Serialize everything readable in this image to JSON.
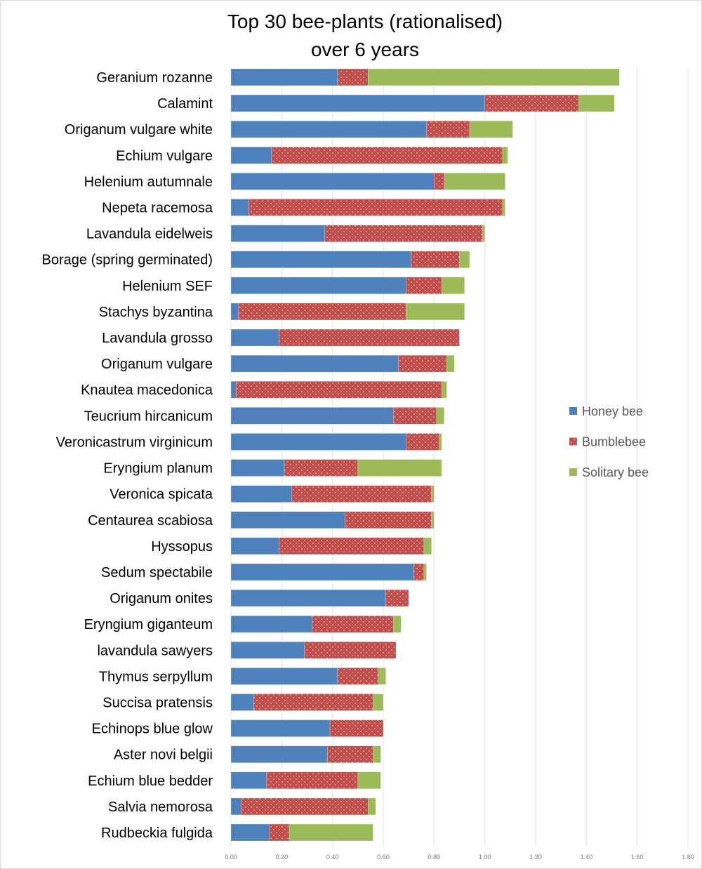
{
  "chart_data": {
    "type": "bar",
    "orientation": "horizontal",
    "stacked": true,
    "title": [
      "Top 30 bee-plants (rationalised)",
      "over 6 years"
    ],
    "xlabel": "",
    "ylabel": "",
    "xlim": [
      0,
      1.8
    ],
    "xticks": [
      "0.00",
      "0.20",
      "0.40",
      "0.60",
      "0.80",
      "1.00",
      "1.20",
      "1.40",
      "1.60",
      "1.80"
    ],
    "grid": true,
    "legend_position": "right",
    "categories": [
      "Geranium rozanne",
      "Calamint",
      "Origanum vulgare white",
      "Echium vulgare",
      "Helenium autumnale",
      "Nepeta racemosa",
      "Lavandula eidelweis",
      "Borage (spring germinated)",
      "Helenium SEF",
      "Stachys byzantina",
      "Lavandula grosso",
      "Origanum vulgare",
      "Knautea macedonica",
      "Teucrium hircanicum",
      "Veronicastrum virginicum",
      "Eryngium planum",
      "Veronica spicata",
      "Centaurea scabiosa",
      "Hyssopus",
      "Sedum spectabile",
      "Origanum onites",
      "Eryngium giganteum",
      "lavandula sawyers",
      "Thymus serpyllum",
      "Succisa pratensis",
      "Echinops blue glow",
      "Aster novi belgii",
      "Echium blue bedder",
      "Salvia nemorosa",
      "Rudbeckia fulgida"
    ],
    "series": [
      {
        "name": "Honey bee",
        "color": "#4f81bd",
        "values": [
          0.42,
          1.0,
          0.77,
          0.16,
          0.8,
          0.07,
          0.37,
          0.71,
          0.69,
          0.03,
          0.19,
          0.66,
          0.02,
          0.64,
          0.69,
          0.21,
          0.24,
          0.45,
          0.19,
          0.72,
          0.61,
          0.32,
          0.29,
          0.42,
          0.09,
          0.39,
          0.38,
          0.14,
          0.04,
          0.15
        ]
      },
      {
        "name": "Bumblebee",
        "color": "#c0504d",
        "values": [
          0.12,
          0.37,
          0.17,
          0.91,
          0.04,
          1.0,
          0.62,
          0.19,
          0.14,
          0.66,
          0.71,
          0.19,
          0.81,
          0.17,
          0.13,
          0.29,
          0.55,
          0.34,
          0.57,
          0.04,
          0.09,
          0.32,
          0.36,
          0.16,
          0.47,
          0.21,
          0.18,
          0.36,
          0.5,
          0.08
        ]
      },
      {
        "name": "Solitary bee",
        "color": "#9bbb59",
        "values": [
          0.99,
          0.14,
          0.17,
          0.02,
          0.24,
          0.01,
          0.01,
          0.04,
          0.09,
          0.23,
          0.0,
          0.03,
          0.02,
          0.03,
          0.01,
          0.33,
          0.01,
          0.01,
          0.03,
          0.01,
          0.0,
          0.03,
          0.0,
          0.03,
          0.04,
          0.0,
          0.03,
          0.09,
          0.03,
          0.33
        ]
      }
    ]
  }
}
